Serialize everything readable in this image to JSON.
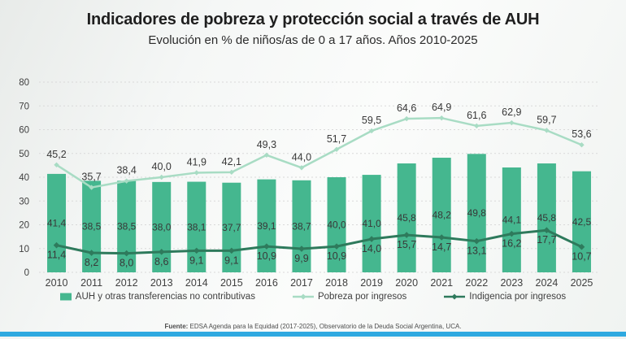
{
  "slide": {
    "title": "Indicadores de pobreza y protección social a través de AUH",
    "subtitle": "Evolución en % de niños/as de 0 a 17 años. Años 2010-2025"
  },
  "legend": {
    "items": [
      {
        "label": "AUH y otras transferencias no contributivas",
        "swatch": "bar-square",
        "color": "#45b78f"
      },
      {
        "label": "Pobreza por ingresos",
        "swatch": "line-diamond",
        "color": "#a8dcc4"
      },
      {
        "label": "Indigencia por ingresos",
        "swatch": "line-diamond",
        "color": "#2e7a5c"
      }
    ]
  },
  "source": {
    "prefix": "Fuente:",
    "text": " EDSA Agenda para la Equidad (2017-2025), Observatorio de la Deuda Social Argentina, UCA."
  },
  "colors": {
    "bar": "#45b78f",
    "poverty_line": "#a8dcc4",
    "indigence_line": "#2e7a5c",
    "gridline": "#d9d9d9",
    "axis_text": "#404040",
    "data_label": "#383838",
    "accent_bottom_bar": "#2fa9e0"
  },
  "chart_data": {
    "type": "combo",
    "categories": [
      "2010",
      "2011",
      "2012",
      "2013",
      "2014",
      "2015",
      "2016",
      "2017",
      "2018",
      "2019",
      "2020",
      "2021",
      "2022",
      "2023",
      "2024",
      "2025"
    ],
    "series": [
      {
        "name": "AUH y otras transferencias no contributivas",
        "type": "bar",
        "color": "#45b78f",
        "values": [
          41.4,
          38.5,
          38.5,
          38.0,
          38.1,
          37.7,
          39.1,
          38.7,
          40.0,
          41.0,
          45.8,
          48.2,
          49.8,
          44.1,
          45.8,
          42.5
        ],
        "labels": [
          "41,4",
          "38,5",
          "38,5",
          "38,0",
          "38,1",
          "37,7",
          "39,1",
          "38,7",
          "40,0",
          "41,0",
          "45,8",
          "48,2",
          "49,8",
          "44,1",
          "45,8",
          "42,5"
        ]
      },
      {
        "name": "Pobreza por ingresos",
        "type": "line",
        "color": "#a8dcc4",
        "values": [
          45.2,
          35.7,
          38.4,
          40.0,
          41.9,
          42.1,
          49.3,
          44.0,
          51.7,
          59.5,
          64.6,
          64.9,
          61.6,
          62.9,
          59.7,
          53.6
        ],
        "labels": [
          "45,2",
          "35,7",
          "38,4",
          "40,0",
          "41,9",
          "42,1",
          "49,3",
          "44,0",
          "51,7",
          "59,5",
          "64,6",
          "64,9",
          "61,6",
          "62,9",
          "59,7",
          "53,6"
        ]
      },
      {
        "name": "Indigencia por ingresos",
        "type": "line",
        "color": "#2e7a5c",
        "values": [
          11.4,
          8.2,
          8.0,
          8.6,
          9.1,
          9.1,
          10.9,
          9.9,
          10.9,
          14.0,
          15.7,
          14.7,
          13.1,
          16.2,
          17.7,
          10.7
        ],
        "labels": [
          "11,4",
          "8,2",
          "8,0",
          "8,6",
          "9,1",
          "9,1",
          "10,9",
          "9,9",
          "10,9",
          "14,0",
          "15,7",
          "14,7",
          "13,1",
          "16,2",
          "17,7",
          "10,7"
        ]
      }
    ],
    "ylim": [
      0,
      80
    ],
    "ytick_step": 10,
    "yticks": [
      "0",
      "10",
      "20",
      "30",
      "40",
      "50",
      "60",
      "70",
      "80"
    ],
    "grid": "horizontal-dashed",
    "legend_position": "bottom"
  }
}
